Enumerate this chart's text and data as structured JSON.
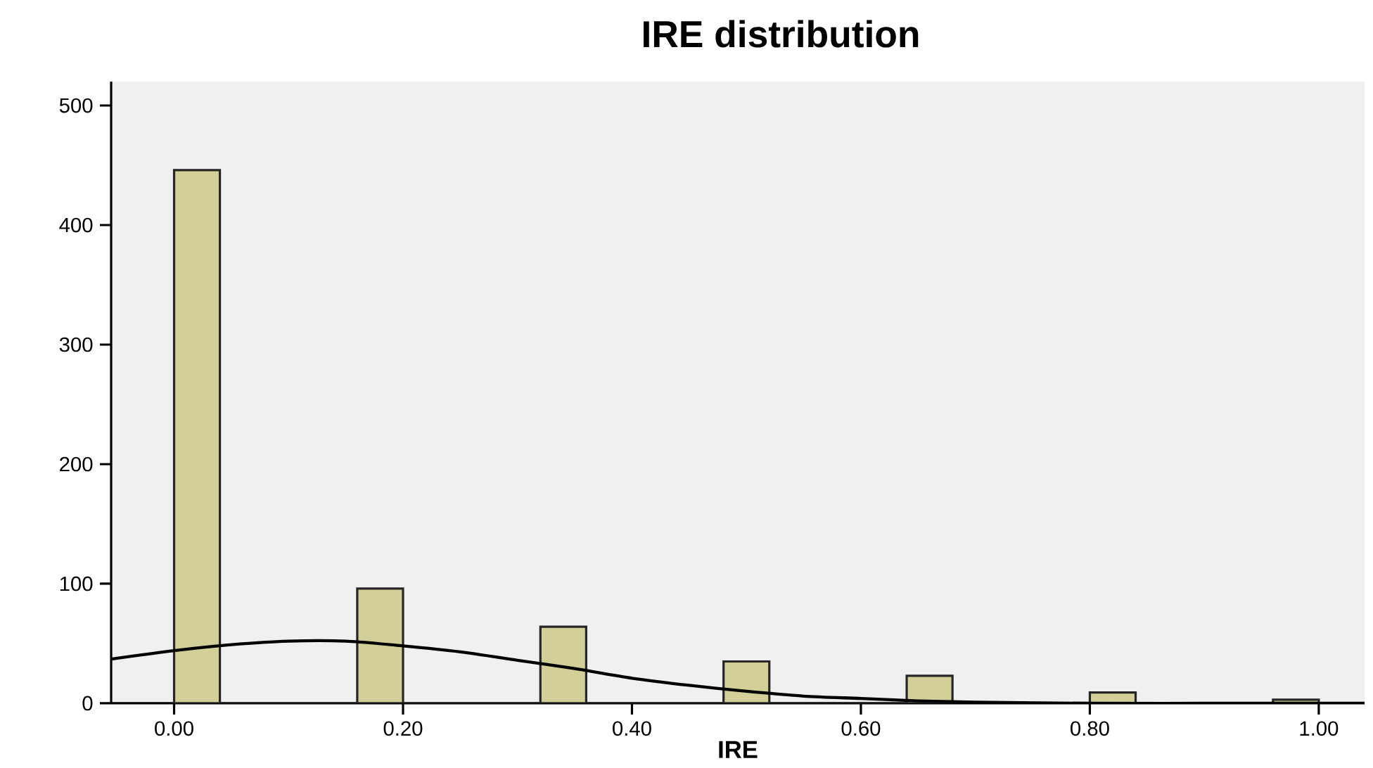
{
  "chart_data": {
    "type": "histogram",
    "title": "IRE distribution",
    "xlabel": "IRE",
    "bins": [
      0,
      0.04,
      0.08,
      0.12,
      0.16,
      0.2,
      0.24,
      0.28,
      0.32,
      0.36,
      0.4,
      0.44,
      0.48,
      0.52,
      0.56,
      0.6,
      0.64,
      0.68,
      0.72,
      0.76,
      0.8,
      0.84,
      0.88,
      0.92,
      0.96,
      1.0
    ],
    "values": [
      446,
      0,
      0,
      0,
      96,
      0,
      0,
      0,
      64,
      0,
      0,
      0,
      35,
      0,
      0,
      0,
      23,
      0,
      0,
      0,
      9,
      0,
      0,
      0,
      3
    ],
    "color": "#d3cf98",
    "series": [
      {
        "type": "line",
        "color": "#000000",
        "x": [
          -0.055,
          0,
          0.05,
          0.1,
          0.15,
          0.2,
          0.25,
          0.3,
          0.35,
          0.4,
          0.45,
          0.5,
          0.55,
          0.6,
          0.65,
          0.7,
          0.8,
          0.9,
          1.04
        ],
        "values": [
          37,
          44,
          49,
          52,
          52,
          48,
          43,
          36,
          29,
          21,
          15,
          10,
          6,
          4,
          2,
          1,
          0,
          0,
          0
        ]
      }
    ],
    "xlim": [
      -0.055,
      1.04
    ],
    "ylim": [
      0,
      520
    ],
    "xticks": [
      {
        "value": 0,
        "label": "0.00"
      },
      {
        "value": 0.2,
        "label": "0.20"
      },
      {
        "value": 0.4,
        "label": "0.40"
      },
      {
        "value": 0.6,
        "label": "0.60"
      },
      {
        "value": 0.8,
        "label": "0.80"
      },
      {
        "value": 1.0,
        "label": "1.00"
      }
    ],
    "yticks": [
      0,
      100,
      200,
      300,
      400,
      500
    ]
  }
}
